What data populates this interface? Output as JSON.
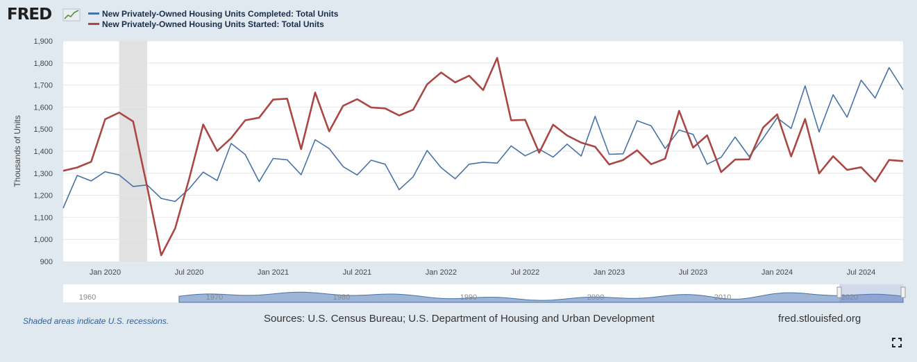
{
  "header": {
    "logo_text": "FRED",
    "logo_icon": "line-chart-icon"
  },
  "colors": {
    "completed": "#4572a7",
    "started": "#aa4643",
    "recession": "#e1e1e1",
    "navigator_fill": "#9fb5d6"
  },
  "chart_data": {
    "type": "line",
    "ylabel": "Thousands of Units",
    "ylim": [
      900,
      1900
    ],
    "yticks": [
      900,
      1000,
      1100,
      1200,
      1300,
      1400,
      1500,
      1600,
      1700,
      1800,
      1900
    ],
    "ytick_labels": [
      "900",
      "1,000",
      "1,100",
      "1,200",
      "1,300",
      "1,400",
      "1,500",
      "1,600",
      "1,700",
      "1,800",
      "1,900"
    ],
    "xlim": [
      "2019-10",
      "2024-10"
    ],
    "xtick_labels": [
      {
        "label": "Jan 2020",
        "month": "2020-01"
      },
      {
        "label": "Jul 2020",
        "month": "2020-07"
      },
      {
        "label": "Jan 2021",
        "month": "2021-01"
      },
      {
        "label": "Jul 2021",
        "month": "2021-07"
      },
      {
        "label": "Jan 2022",
        "month": "2022-01"
      },
      {
        "label": "Jul 2022",
        "month": "2022-07"
      },
      {
        "label": "Jan 2023",
        "month": "2023-01"
      },
      {
        "label": "Jul 2023",
        "month": "2023-07"
      },
      {
        "label": "Jan 2024",
        "month": "2024-01"
      },
      {
        "label": "Jul 2024",
        "month": "2024-07"
      }
    ],
    "recession": [
      "2020-02",
      "2020-04"
    ],
    "start_month": "2019-10",
    "series": [
      {
        "name": "New Privately-Owned Housing Units Completed: Total Units",
        "values": [
          1142,
          1290,
          1265,
          1307,
          1292,
          1240,
          1247,
          1186,
          1172,
          1230,
          1305,
          1267,
          1435,
          1385,
          1262,
          1367,
          1361,
          1293,
          1452,
          1412,
          1330,
          1292,
          1359,
          1341,
          1225,
          1284,
          1403,
          1325,
          1275,
          1341,
          1350,
          1346,
          1424,
          1379,
          1409,
          1373,
          1432,
          1378,
          1558,
          1386,
          1388,
          1538,
          1515,
          1412,
          1496,
          1476,
          1341,
          1372,
          1464,
          1376,
          1458,
          1551,
          1503,
          1696,
          1487,
          1656,
          1554,
          1722,
          1641,
          1779,
          1679
        ]
      },
      {
        "name": "New Privately-Owned Housing Units Started: Total Units",
        "values": [
          1311,
          1326,
          1352,
          1545,
          1575,
          1535,
          1238,
          928,
          1050,
          1275,
          1521,
          1401,
          1459,
          1540,
          1552,
          1634,
          1638,
          1409,
          1666,
          1490,
          1606,
          1636,
          1598,
          1594,
          1562,
          1588,
          1703,
          1757,
          1712,
          1742,
          1677,
          1823,
          1540,
          1542,
          1393,
          1520,
          1471,
          1439,
          1420,
          1340,
          1360,
          1404,
          1341,
          1366,
          1583,
          1416,
          1472,
          1305,
          1362,
          1363,
          1507,
          1567,
          1376,
          1546,
          1299,
          1377,
          1315,
          1327,
          1262,
          1360,
          1355
        ]
      }
    ]
  },
  "navigator": {
    "decade_labels": [
      "1960",
      "1970",
      "1980",
      "1990",
      "2000",
      "2010",
      "2020"
    ]
  },
  "footer": {
    "recession_note": "Shaded areas indicate U.S. recessions.",
    "sources": "Sources: U.S. Census Bureau; U.S. Department of Housing and Urban Development",
    "url": "fred.stlouisfed.org"
  }
}
